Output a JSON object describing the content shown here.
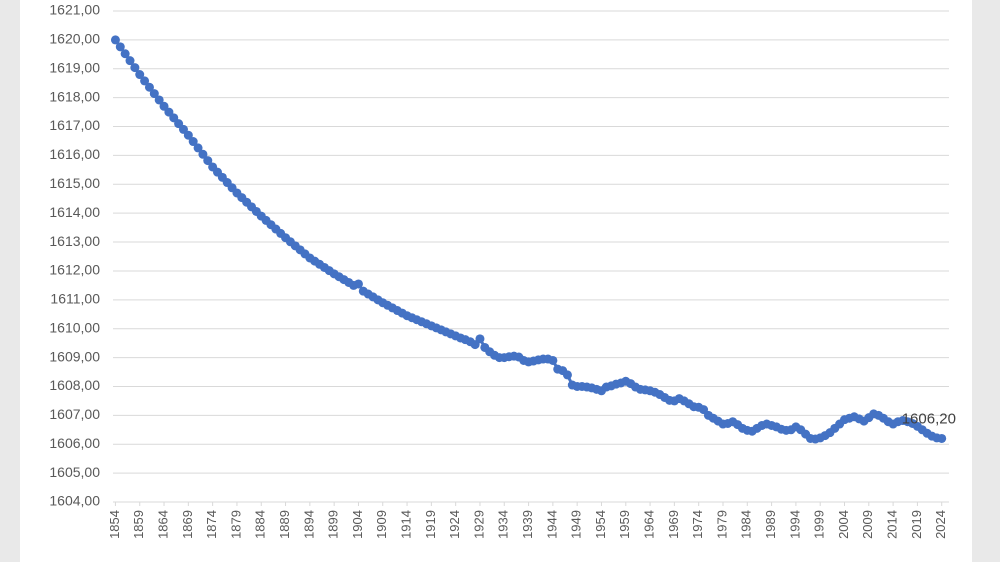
{
  "chart_data": {
    "type": "line",
    "color": "#4472c4",
    "grid": true,
    "x": [
      1854,
      1855,
      1856,
      1857,
      1858,
      1859,
      1860,
      1861,
      1862,
      1863,
      1864,
      1865,
      1866,
      1867,
      1868,
      1869,
      1870,
      1871,
      1872,
      1873,
      1874,
      1875,
      1876,
      1877,
      1878,
      1879,
      1880,
      1881,
      1882,
      1883,
      1884,
      1885,
      1886,
      1887,
      1888,
      1889,
      1890,
      1891,
      1892,
      1893,
      1894,
      1895,
      1896,
      1897,
      1898,
      1899,
      1900,
      1901,
      1902,
      1903,
      1904,
      1905,
      1906,
      1907,
      1908,
      1909,
      1910,
      1911,
      1912,
      1913,
      1914,
      1915,
      1916,
      1917,
      1918,
      1919,
      1920,
      1921,
      1922,
      1923,
      1924,
      1925,
      1926,
      1927,
      1928,
      1929,
      1930,
      1931,
      1932,
      1933,
      1934,
      1935,
      1936,
      1937,
      1938,
      1939,
      1940,
      1941,
      1942,
      1943,
      1944,
      1945,
      1946,
      1947,
      1948,
      1949,
      1950,
      1951,
      1952,
      1953,
      1954,
      1955,
      1956,
      1957,
      1958,
      1959,
      1960,
      1961,
      1962,
      1963,
      1964,
      1965,
      1966,
      1967,
      1968,
      1969,
      1970,
      1971,
      1972,
      1973,
      1974,
      1975,
      1976,
      1977,
      1978,
      1979,
      1980,
      1981,
      1982,
      1983,
      1984,
      1985,
      1986,
      1987,
      1988,
      1989,
      1990,
      1991,
      1992,
      1993,
      1994,
      1995,
      1996,
      1997,
      1998,
      1999,
      2000,
      2001,
      2002,
      2003,
      2004,
      2005,
      2006,
      2007,
      2008,
      2009,
      2010,
      2011,
      2012,
      2013,
      2014,
      2015,
      2016,
      2017,
      2018,
      2019,
      2020,
      2021,
      2022,
      2023,
      2024
    ],
    "values": [
      1620.0,
      1619.76,
      1619.52,
      1619.28,
      1619.04,
      1618.8,
      1618.58,
      1618.36,
      1618.14,
      1617.92,
      1617.7,
      1617.5,
      1617.3,
      1617.1,
      1616.9,
      1616.7,
      1616.48,
      1616.26,
      1616.04,
      1615.82,
      1615.6,
      1615.42,
      1615.24,
      1615.06,
      1614.88,
      1614.7,
      1614.54,
      1614.38,
      1614.22,
      1614.06,
      1613.9,
      1613.75,
      1613.6,
      1613.45,
      1613.3,
      1613.15,
      1613.01,
      1612.87,
      1612.73,
      1612.59,
      1612.45,
      1612.34,
      1612.23,
      1612.12,
      1612.01,
      1611.9,
      1611.8,
      1611.7,
      1611.6,
      1611.5,
      1611.55,
      1611.3,
      1611.2,
      1611.1,
      1611.0,
      1610.9,
      1610.81,
      1610.72,
      1610.63,
      1610.54,
      1610.45,
      1610.38,
      1610.31,
      1610.24,
      1610.17,
      1610.1,
      1610.03,
      1609.96,
      1609.89,
      1609.82,
      1609.75,
      1609.68,
      1609.62,
      1609.55,
      1609.45,
      1609.65,
      1609.35,
      1609.2,
      1609.08,
      1609.0,
      1609.0,
      1609.03,
      1609.05,
      1609.02,
      1608.9,
      1608.85,
      1608.88,
      1608.92,
      1608.95,
      1608.95,
      1608.9,
      1608.6,
      1608.55,
      1608.4,
      1608.05,
      1608.0,
      1608.0,
      1607.98,
      1607.95,
      1607.9,
      1607.85,
      1607.98,
      1608.02,
      1608.08,
      1608.12,
      1608.18,
      1608.1,
      1607.98,
      1607.9,
      1607.88,
      1607.85,
      1607.8,
      1607.72,
      1607.62,
      1607.52,
      1607.5,
      1607.58,
      1607.5,
      1607.4,
      1607.3,
      1607.28,
      1607.2,
      1607.0,
      1606.9,
      1606.8,
      1606.7,
      1606.72,
      1606.78,
      1606.68,
      1606.55,
      1606.48,
      1606.45,
      1606.55,
      1606.65,
      1606.7,
      1606.65,
      1606.6,
      1606.52,
      1606.48,
      1606.5,
      1606.6,
      1606.5,
      1606.35,
      1606.2,
      1606.18,
      1606.22,
      1606.3,
      1606.4,
      1606.55,
      1606.7,
      1606.85,
      1606.9,
      1606.95,
      1606.88,
      1606.8,
      1606.92,
      1607.05,
      1607.0,
      1606.9,
      1606.78,
      1606.7,
      1606.78,
      1606.82,
      1606.78,
      1606.72,
      1606.62,
      1606.5,
      1606.38,
      1606.28,
      1606.22,
      1606.2
    ],
    "value_labels": [
      null,
      null,
      null,
      null,
      null,
      null,
      null,
      null,
      null,
      null,
      null,
      null,
      null,
      null,
      null,
      null,
      null,
      null,
      null,
      null,
      null,
      null,
      null,
      null,
      null,
      null,
      null,
      null,
      null,
      null,
      null,
      null,
      null,
      null,
      null,
      null,
      null,
      null,
      null,
      null,
      null,
      null,
      null,
      null,
      null,
      null,
      null,
      null,
      null,
      null,
      null,
      null,
      null,
      null,
      null,
      null,
      null,
      null,
      null,
      null,
      null,
      null,
      null,
      null,
      null,
      null,
      null,
      null,
      null,
      null,
      null,
      null,
      null,
      null,
      null,
      null,
      null,
      null,
      null,
      null,
      null,
      null,
      null,
      null,
      null,
      null,
      null,
      null,
      null,
      null,
      null,
      null,
      null,
      null,
      null,
      null,
      null,
      null,
      null,
      null,
      null,
      null,
      null,
      null,
      null,
      null,
      null,
      null,
      null,
      null,
      null,
      null,
      null,
      null,
      null,
      null,
      null,
      null,
      null,
      null,
      null,
      null,
      null,
      null,
      null,
      null,
      null,
      null,
      null,
      null,
      null,
      null,
      null,
      null,
      null,
      null,
      null,
      null,
      null,
      null,
      null,
      null,
      null,
      null,
      null,
      null,
      null,
      null,
      null,
      null,
      null,
      null,
      null,
      null,
      null,
      null,
      null,
      null,
      null,
      null,
      null,
      null,
      null,
      null,
      null,
      null,
      null,
      null,
      null,
      null,
      "1606,20"
    ],
    "xlim": [
      1853.5,
      2025.5
    ],
    "xticks": [
      1854,
      1859,
      1864,
      1869,
      1874,
      1879,
      1884,
      1889,
      1894,
      1899,
      1904,
      1909,
      1914,
      1919,
      1924,
      1929,
      1934,
      1939,
      1944,
      1949,
      1954,
      1959,
      1964,
      1969,
      1974,
      1979,
      1984,
      1989,
      1994,
      1999,
      2004,
      2009,
      2014,
      2019,
      2024
    ],
    "ylim": [
      1604,
      1621
    ],
    "yticks": [
      {
        "value": 1604,
        "label": "1604,00"
      },
      {
        "value": 1605,
        "label": "1605,00"
      },
      {
        "value": 1606,
        "label": "1606,00"
      },
      {
        "value": 1607,
        "label": "1607,00"
      },
      {
        "value": 1608,
        "label": "1608,00"
      },
      {
        "value": 1609,
        "label": "1609,00"
      },
      {
        "value": 1610,
        "label": "1610,00"
      },
      {
        "value": 1611,
        "label": "1611,00"
      },
      {
        "value": 1612,
        "label": "1612,00"
      },
      {
        "value": 1613,
        "label": "1613,00"
      },
      {
        "value": 1614,
        "label": "1614,00"
      },
      {
        "value": 1615,
        "label": "1615,00"
      },
      {
        "value": 1616,
        "label": "1616,00"
      },
      {
        "value": 1617,
        "label": "1617,00"
      },
      {
        "value": 1618,
        "label": "1618,00"
      },
      {
        "value": 1619,
        "label": "1619,00"
      },
      {
        "value": 1620,
        "label": "1620,00"
      },
      {
        "value": 1621,
        "label": "1621,00"
      }
    ]
  }
}
